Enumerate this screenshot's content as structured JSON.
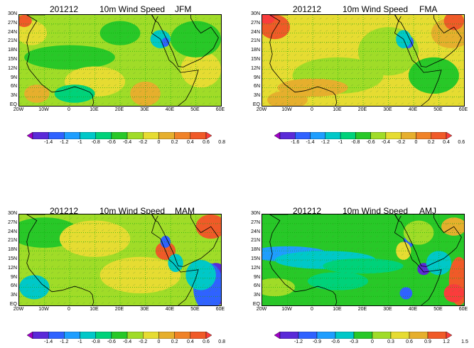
{
  "panels": [
    {
      "run": "201212",
      "title": "10m Wind Speed",
      "season": "JFM",
      "colorbar": {
        "labels": [
          "-1.4",
          "-1.2",
          "-1",
          "-0.8",
          "-0.6",
          "-0.4",
          "-0.2",
          "0",
          "0.2",
          "0.4",
          "0.6",
          "0.8"
        ],
        "colors": [
          "#a000c8",
          "#5a2ad8",
          "#2f62ff",
          "#1e9eff",
          "#00c8c8",
          "#00d27a",
          "#28c828",
          "#a0dc28",
          "#e6dc32",
          "#e6af2d",
          "#f08228",
          "#f05a28",
          "#fa3c3c"
        ]
      }
    },
    {
      "run": "201212",
      "title": "10m Wind Speed",
      "season": "FMA",
      "colorbar": {
        "labels": [
          "-1.6",
          "-1.4",
          "-1.2",
          "-1",
          "-0.8",
          "-0.6",
          "-0.4",
          "-0.2",
          "0",
          "0.2",
          "0.4",
          "0.6"
        ],
        "colors": [
          "#a000c8",
          "#5a2ad8",
          "#2f62ff",
          "#1e9eff",
          "#00c8c8",
          "#00d27a",
          "#28c828",
          "#a0dc28",
          "#e6dc32",
          "#e6af2d",
          "#f08228",
          "#f05a28",
          "#fa3c3c"
        ]
      }
    },
    {
      "run": "201212",
      "title": "10m Wind Speed",
      "season": "MAM",
      "colorbar": {
        "labels": [
          "-1.4",
          "-1.2",
          "-1",
          "-0.8",
          "-0.6",
          "-0.4",
          "-0.2",
          "0",
          "0.2",
          "0.4",
          "0.6",
          "0.8"
        ],
        "colors": [
          "#a000c8",
          "#5a2ad8",
          "#2f62ff",
          "#1e9eff",
          "#00c8c8",
          "#00d27a",
          "#28c828",
          "#a0dc28",
          "#e6dc32",
          "#e6af2d",
          "#f08228",
          "#f05a28",
          "#fa3c3c"
        ]
      }
    },
    {
      "run": "201212",
      "title": "10m Wind Speed",
      "season": "AMJ",
      "colorbar": {
        "labels": [
          "-1.2",
          "-0.9",
          "-0.6",
          "-0.3",
          "0",
          "0.3",
          "0.6",
          "0.9",
          "1.2",
          "1.5"
        ],
        "colors": [
          "#a000c8",
          "#5a2ad8",
          "#2f62ff",
          "#1e9eff",
          "#00c8c8",
          "#28c828",
          "#a0dc28",
          "#e6dc32",
          "#e6af2d",
          "#f05a28",
          "#fa3c3c"
        ]
      }
    }
  ],
  "map_axes": {
    "lat_labels": [
      "30N",
      "27N",
      "24N",
      "21N",
      "18N",
      "15N",
      "12N",
      "9N",
      "6N",
      "3N",
      "EQ"
    ],
    "lon_labels": [
      "20W",
      "10W",
      "0",
      "10E",
      "20E",
      "30E",
      "40E",
      "50E",
      "60E"
    ]
  },
  "chart_data": [
    {
      "type": "heatmap",
      "title": "201212 10m Wind Speed JFM",
      "x_range": [
        "20W",
        "60E"
      ],
      "y_range": [
        "EQ",
        "30N"
      ],
      "dominant_values": [
        -0.2,
        0,
        0.2
      ],
      "extremes": {
        "min": -1.0,
        "max": 0.8
      }
    },
    {
      "type": "heatmap",
      "title": "201212 10m Wind Speed FMA",
      "x_range": [
        "20W",
        "60E"
      ],
      "y_range": [
        "EQ",
        "30N"
      ],
      "dominant_values": [
        -0.2,
        0,
        0.2
      ],
      "extremes": {
        "min": -1.2,
        "max": 0.6
      }
    },
    {
      "type": "heatmap",
      "title": "201212 10m Wind Speed MAM",
      "x_range": [
        "20W",
        "60E"
      ],
      "y_range": [
        "EQ",
        "30N"
      ],
      "dominant_values": [
        -0.2,
        0,
        0.2
      ],
      "extremes": {
        "min": -1.4,
        "max": 0.8
      }
    },
    {
      "type": "heatmap",
      "title": "201212 10m Wind Speed AMJ",
      "x_range": [
        "20W",
        "60E"
      ],
      "y_range": [
        "EQ",
        "30N"
      ],
      "dominant_values": [
        -0.3,
        0,
        0.3
      ],
      "extremes": {
        "min": -1.2,
        "max": 1.5
      }
    }
  ],
  "colors": {
    "grid": "#00aa00",
    "coast": "#000000",
    "vector": "#5a8a3a"
  }
}
